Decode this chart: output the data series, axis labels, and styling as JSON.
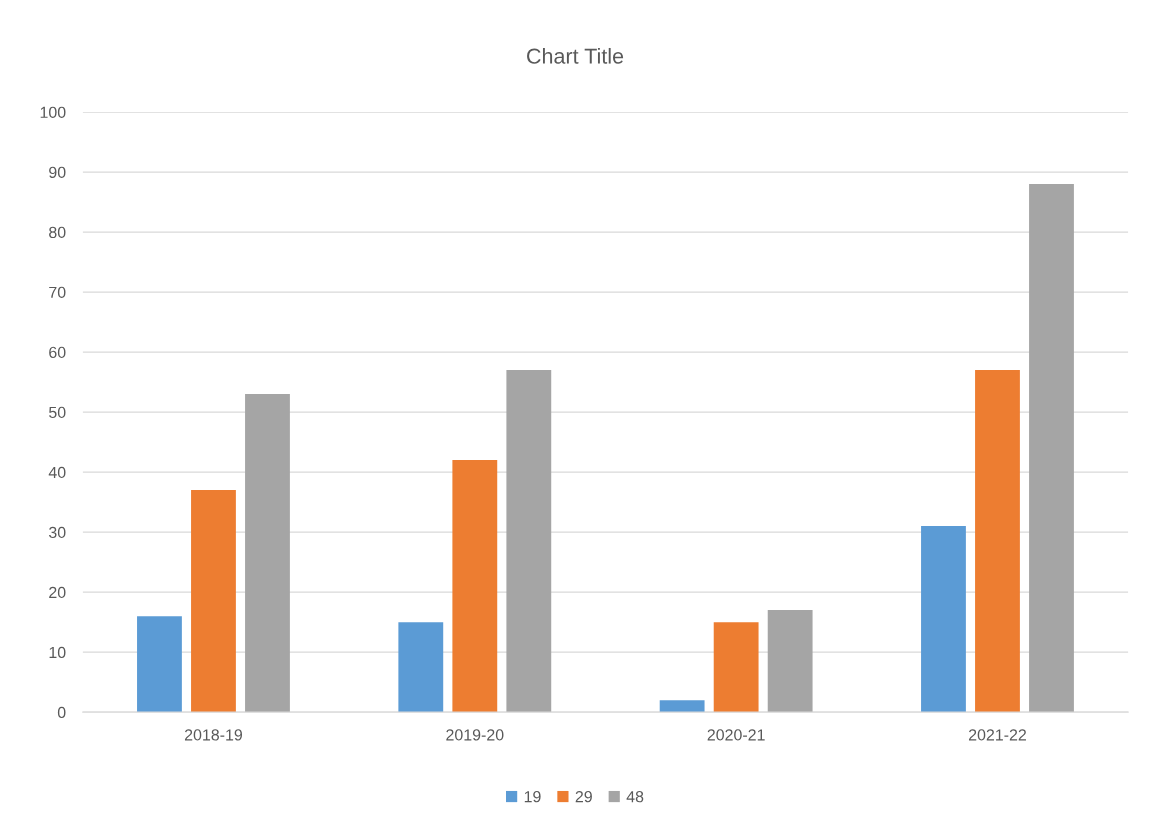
{
  "chart_data": {
    "type": "bar",
    "title": "Chart Title",
    "categories": [
      "2018-19",
      "2019-20",
      "2020-21",
      "2021-22"
    ],
    "series": [
      {
        "name": "19",
        "color": "#5b9bd5",
        "values": [
          16,
          15,
          2,
          31
        ]
      },
      {
        "name": "29",
        "color": "#ed7d31",
        "values": [
          37,
          42,
          15,
          57
        ]
      },
      {
        "name": "48",
        "color": "#a5a5a5",
        "values": [
          53,
          57,
          17,
          88
        ]
      }
    ],
    "ylim": [
      0,
      100
    ],
    "yticks": [
      0,
      10,
      20,
      30,
      40,
      50,
      60,
      70,
      80,
      90,
      100
    ],
    "grid": "y",
    "legend": "bottom"
  }
}
